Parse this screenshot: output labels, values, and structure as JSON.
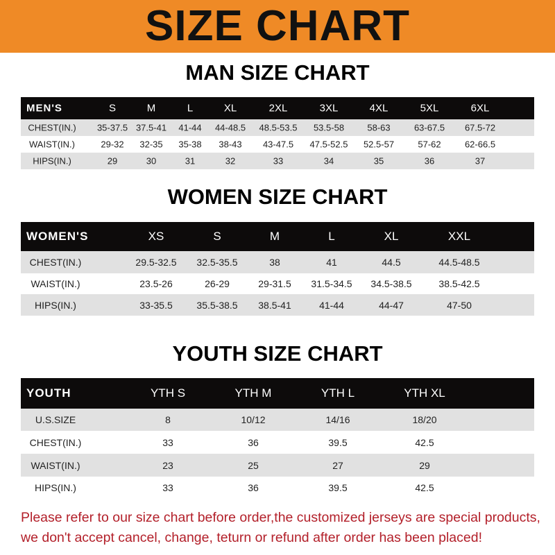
{
  "title": "SIZE CHART",
  "men": {
    "heading": "MAN SIZE CHART",
    "header": [
      "MEN'S",
      "S",
      "M",
      "L",
      "XL",
      "2XL",
      "3XL",
      "4XL",
      "5XL",
      "6XL"
    ],
    "rows": [
      [
        "CHEST(IN.)",
        "35-37.5",
        "37.5-41",
        "41-44",
        "44-48.5",
        "48.5-53.5",
        "53.5-58",
        "58-63",
        "63-67.5",
        "67.5-72"
      ],
      [
        "WAIST(IN.)",
        "29-32",
        "32-35",
        "35-38",
        "38-43",
        "43-47.5",
        "47.5-52.5",
        "52.5-57",
        "57-62",
        "62-66.5"
      ],
      [
        "HIPS(IN.)",
        "29",
        "30",
        "31",
        "32",
        "33",
        "34",
        "35",
        "36",
        "37"
      ]
    ]
  },
  "women": {
    "heading": "WOMEN SIZE CHART",
    "header": [
      "WOMEN'S",
      "XS",
      "S",
      "M",
      "L",
      "XL",
      "XXL"
    ],
    "rows": [
      [
        "CHEST(IN.)",
        "29.5-32.5",
        "32.5-35.5",
        "38",
        "41",
        "44.5",
        "44.5-48.5"
      ],
      [
        "WAIST(IN.)",
        "23.5-26",
        "26-29",
        "29-31.5",
        "31.5-34.5",
        "34.5-38.5",
        "38.5-42.5"
      ],
      [
        "HIPS(IN.)",
        "33-35.5",
        "35.5-38.5",
        "38.5-41",
        "41-44",
        "44-47",
        "47-50"
      ]
    ]
  },
  "youth": {
    "heading": "YOUTH SIZE CHART",
    "header": [
      "YOUTH",
      "YTH S",
      "YTH M",
      "YTH L",
      "YTH XL"
    ],
    "rows": [
      [
        "U.S.SIZE",
        "8",
        "10/12",
        "14/16",
        "18/20"
      ],
      [
        "CHEST(IN.)",
        "33",
        "36",
        "39.5",
        "42.5"
      ],
      [
        "WAIST(IN.)",
        "23",
        "25",
        "27",
        "29"
      ],
      [
        "HIPS(IN.)",
        "33",
        "36",
        "39.5",
        "42.5"
      ]
    ]
  },
  "notice": [
    "Please refer to our size chart before order,the customized jerseys are special products,",
    "we don't accept cancel, change, teturn or refund after order has been placed!"
  ],
  "colors": {
    "banner": "#ef8a26",
    "header": "#0d0b0b",
    "stripe": "#e1e1e1",
    "notice": "#b3202a"
  }
}
